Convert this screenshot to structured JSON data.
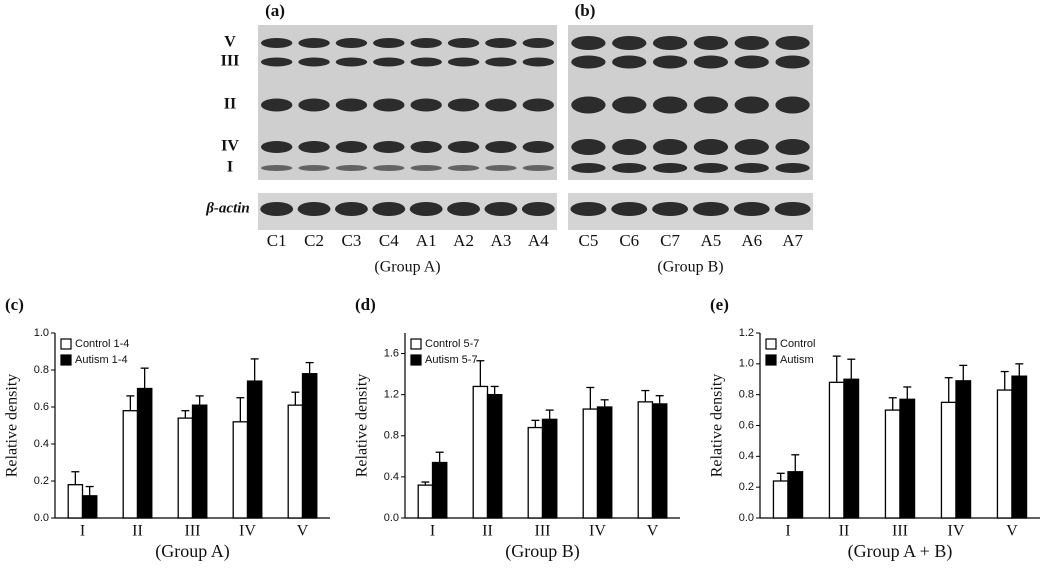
{
  "blots": {
    "band_labels": [
      "V",
      "III",
      "II",
      "IV",
      "I"
    ],
    "loading_label": "β-actin",
    "panels": [
      {
        "label": "(a)",
        "lanes": [
          "C1",
          "C2",
          "C3",
          "C4",
          "A1",
          "A2",
          "A3",
          "A4"
        ],
        "group": "(Group A)"
      },
      {
        "label": "(b)",
        "lanes": [
          "C5",
          "C6",
          "C7",
          "A5",
          "A6",
          "A7"
        ],
        "group": "(Group B)"
      }
    ]
  },
  "chart_data": [
    {
      "type": "bar",
      "panel_label": "(c)",
      "ylabel": "Relative density",
      "xlabel": "(Group A)",
      "categories": [
        "I",
        "II",
        "III",
        "IV",
        "V"
      ],
      "series": [
        {
          "name": "Control 1-4",
          "color": "#ffffff",
          "values": [
            0.18,
            0.58,
            0.54,
            0.52,
            0.61
          ],
          "errors": [
            0.07,
            0.08,
            0.04,
            0.13,
            0.07
          ]
        },
        {
          "name": "Autism 1-4",
          "color": "#000000",
          "values": [
            0.12,
            0.7,
            0.61,
            0.74,
            0.78
          ],
          "errors": [
            0.05,
            0.11,
            0.05,
            0.12,
            0.06
          ]
        }
      ],
      "ylim": [
        0,
        1.0
      ],
      "yticks": [
        {
          "value": 0,
          "label": "0.0"
        },
        0.2,
        0.4,
        0.6,
        0.8,
        {
          "value": 1,
          "label": "1.0"
        }
      ],
      "legend": "upper left"
    },
    {
      "type": "bar",
      "panel_label": "(d)",
      "ylabel": "Relative density",
      "xlabel": "(Group B)",
      "categories": [
        "I",
        "II",
        "III",
        "IV",
        "V"
      ],
      "series": [
        {
          "name": "Control 5-7",
          "color": "#ffffff",
          "values": [
            0.32,
            1.28,
            0.88,
            1.06,
            1.13
          ],
          "errors": [
            0.03,
            0.25,
            0.07,
            0.21,
            0.11
          ]
        },
        {
          "name": "Autism 5-7",
          "color": "#000000",
          "values": [
            0.54,
            1.2,
            0.96,
            1.08,
            1.11
          ],
          "errors": [
            0.1,
            0.08,
            0.09,
            0.07,
            0.08
          ]
        }
      ],
      "ylim": [
        0,
        1.8
      ],
      "yticks": [
        {
          "value": 0,
          "label": "0.0"
        },
        0.4,
        0.8,
        1.2,
        1.6
      ],
      "legend": "upper left"
    },
    {
      "type": "bar",
      "panel_label": "(e)",
      "ylabel": "Relative density",
      "xlabel": "(Group A + B)",
      "categories": [
        "I",
        "II",
        "III",
        "IV",
        "V"
      ],
      "series": [
        {
          "name": "Control",
          "color": "#ffffff",
          "values": [
            0.24,
            0.88,
            0.7,
            0.75,
            0.83
          ],
          "errors": [
            0.05,
            0.17,
            0.08,
            0.16,
            0.12
          ]
        },
        {
          "name": "Autism",
          "color": "#000000",
          "values": [
            0.3,
            0.9,
            0.77,
            0.89,
            0.92
          ],
          "errors": [
            0.11,
            0.13,
            0.08,
            0.1,
            0.08
          ]
        }
      ],
      "ylim": [
        0,
        1.2
      ],
      "yticks": [
        {
          "value": 0,
          "label": "0.0"
        },
        0.2,
        0.4,
        0.6,
        0.8,
        {
          "value": 1,
          "label": "1.0"
        },
        1.2
      ],
      "legend": "upper left"
    }
  ]
}
